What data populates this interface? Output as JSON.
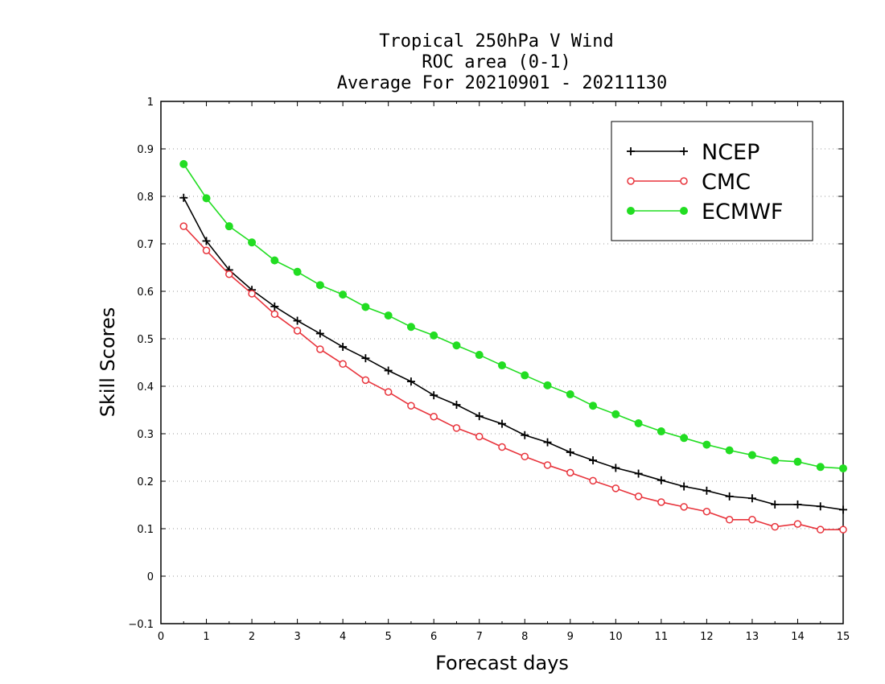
{
  "chart_data": {
    "type": "line",
    "title_lines": [
      "Tropical 250hPa V Wind",
      "ROC area (0-1)",
      "Average For 20210901 - 20211130"
    ],
    "xlabel": "Forecast days",
    "ylabel": "Skill Scores",
    "xlim": [
      0,
      15
    ],
    "ylim": [
      -0.1,
      1
    ],
    "xticks": [
      "0",
      "1",
      "2",
      "3",
      "4",
      "5",
      "6",
      "7",
      "8",
      "9",
      "10",
      "11",
      "12",
      "13",
      "14",
      "15"
    ],
    "yticks": [
      "−0.1",
      "0",
      "0.1",
      "0.2",
      "0.3",
      "0.4",
      "0.5",
      "0.6",
      "0.7",
      "0.8",
      "0.9",
      "1"
    ],
    "ytick_values": [
      -0.1,
      0,
      0.1,
      0.2,
      0.3,
      0.4,
      0.5,
      0.6,
      0.7,
      0.8,
      0.9,
      1
    ],
    "grid": "horizontal dotted",
    "legend_position": "top-right",
    "x": [
      0.5,
      1,
      1.5,
      2,
      2.5,
      3,
      3.5,
      4,
      4.5,
      5,
      5.5,
      6,
      6.5,
      7,
      7.5,
      8,
      8.5,
      9,
      9.5,
      10,
      10.5,
      11,
      11.5,
      12,
      12.5,
      13,
      13.5,
      14,
      14.5,
      15
    ],
    "series": [
      {
        "name": "NCEP",
        "color": "#000000",
        "marker": "plus",
        "values": [
          0.797,
          0.706,
          0.645,
          0.603,
          0.568,
          0.538,
          0.511,
          0.483,
          0.459,
          0.433,
          0.41,
          0.381,
          0.361,
          0.337,
          0.321,
          0.297,
          0.282,
          0.261,
          0.244,
          0.228,
          0.216,
          0.202,
          0.189,
          0.18,
          0.168,
          0.164,
          0.151,
          0.151,
          0.147,
          0.14
        ]
      },
      {
        "name": "CMC",
        "color": "#e8343c",
        "marker": "open-circle",
        "values": [
          0.737,
          0.686,
          0.636,
          0.595,
          0.552,
          0.517,
          0.478,
          0.447,
          0.413,
          0.388,
          0.359,
          0.336,
          0.312,
          0.294,
          0.272,
          0.252,
          0.234,
          0.218,
          0.201,
          0.185,
          0.168,
          0.156,
          0.146,
          0.136,
          0.119,
          0.119,
          0.104,
          0.11,
          0.098,
          0.098
        ]
      },
      {
        "name": "ECMWF",
        "color": "#22dd22",
        "marker": "filled-circle",
        "values": [
          0.868,
          0.796,
          0.737,
          0.703,
          0.665,
          0.641,
          0.613,
          0.593,
          0.567,
          0.549,
          0.525,
          0.507,
          0.486,
          0.466,
          0.444,
          0.423,
          0.402,
          0.383,
          0.359,
          0.341,
          0.322,
          0.305,
          0.291,
          0.277,
          0.265,
          0.255,
          0.244,
          0.241,
          0.23,
          0.227
        ]
      }
    ]
  }
}
